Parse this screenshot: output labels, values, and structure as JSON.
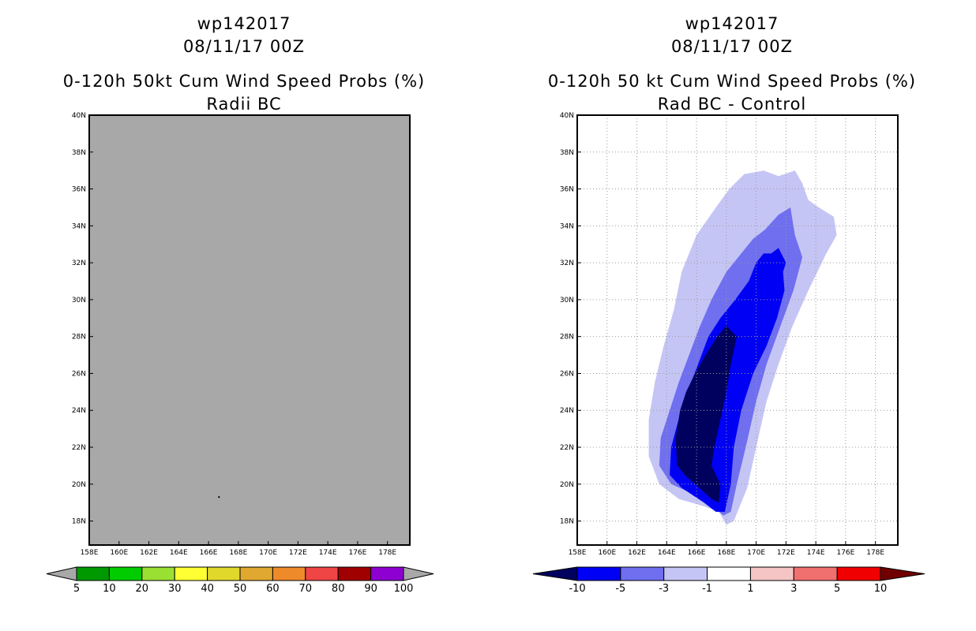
{
  "chart_data": [
    {
      "type": "heatmap",
      "storm_id": "wp142017",
      "init_time": "08/11/17 00Z",
      "title": "0-120h 50kt Cum Wind Speed Probs (%)",
      "subtitle": "Radii BC",
      "xlim": [
        158,
        179.5
      ],
      "ylim": [
        16.7,
        40
      ],
      "x_ticks": [
        "158E",
        "160E",
        "162E",
        "164E",
        "166E",
        "168E",
        "170E",
        "172E",
        "174E",
        "176E",
        "178E"
      ],
      "y_ticks": [
        "18N",
        "20N",
        "22N",
        "24N",
        "26N",
        "28N",
        "30N",
        "32N",
        "34N",
        "36N",
        "38N",
        "40N"
      ],
      "grid": false,
      "field_note": "uniform undefined field (all grey) with a single marker near 166.7E, 19.3N",
      "marker": {
        "lon": 166.7,
        "lat": 19.3
      },
      "colorbar": {
        "levels": [
          "5",
          "10",
          "20",
          "30",
          "40",
          "50",
          "60",
          "70",
          "80",
          "90",
          "100"
        ],
        "colors": [
          "#009900",
          "#00cc00",
          "#99e033",
          "#ffff33",
          "#e0d92b",
          "#e0a830",
          "#ef8a2b",
          "#f04545",
          "#a00000",
          "#8d00d0"
        ],
        "under_color": "#a8a8a8",
        "over_color": "#a8a8a8"
      },
      "background_color": "#a8a8a8"
    },
    {
      "type": "heatmap",
      "storm_id": "wp142017",
      "init_time": "08/11/17 00Z",
      "title": "0-120h 50 kt Cum Wind Speed Probs (%)",
      "subtitle": "Rad BC - Control",
      "xlim": [
        158,
        179.5
      ],
      "ylim": [
        16.7,
        40
      ],
      "x_ticks": [
        "158E",
        "160E",
        "162E",
        "164E",
        "166E",
        "168E",
        "170E",
        "172E",
        "174E",
        "176E",
        "178E"
      ],
      "y_ticks": [
        "18N",
        "20N",
        "22N",
        "24N",
        "26N",
        "28N",
        "30N",
        "32N",
        "34N",
        "36N",
        "38N",
        "40N"
      ],
      "grid": true,
      "colorbar": {
        "levels": [
          "-10",
          "-5",
          "-3",
          "-1",
          "1",
          "3",
          "5",
          "10"
        ],
        "colors": [
          "#0000f5",
          "#6f6ff0",
          "#c5c5f5",
          "#ffffff",
          "#f5c5c5",
          "#f06f6f",
          "#f00000"
        ],
        "under_color": "#00005f",
        "over_color": "#700000"
      },
      "contours": [
        {
          "level": "-1 to -3",
          "color": "#c5c5f5",
          "points": [
            [
              168.5,
              18.0
            ],
            [
              169.4,
              19.8
            ],
            [
              170.0,
              22.0
            ],
            [
              170.7,
              24.5
            ],
            [
              171.5,
              26.5
            ],
            [
              172.4,
              28.5
            ],
            [
              173.5,
              30.5
            ],
            [
              174.7,
              32.5
            ],
            [
              175.4,
              33.5
            ],
            [
              175.2,
              34.5
            ],
            [
              174.2,
              35.0
            ],
            [
              173.5,
              35.4
            ],
            [
              173.1,
              36.3
            ],
            [
              172.6,
              37.0
            ],
            [
              171.5,
              36.7
            ],
            [
              170.5,
              37.0
            ],
            [
              169.2,
              36.8
            ],
            [
              168.2,
              36.0
            ],
            [
              167.3,
              35.0
            ],
            [
              166.0,
              33.5
            ],
            [
              165.0,
              31.5
            ],
            [
              164.5,
              29.5
            ],
            [
              163.8,
              27.5
            ],
            [
              163.2,
              25.5
            ],
            [
              162.8,
              23.5
            ],
            [
              162.8,
              21.5
            ],
            [
              163.5,
              20.0
            ],
            [
              164.8,
              19.2
            ],
            [
              166.5,
              18.8
            ],
            [
              167.5,
              18.5
            ],
            [
              168.0,
              17.8
            ]
          ]
        },
        {
          "level": "-3 to -5",
          "color": "#6f6ff0",
          "points": [
            [
              168.3,
              18.5
            ],
            [
              168.7,
              20.0
            ],
            [
              169.3,
              22.0
            ],
            [
              170.0,
              24.5
            ],
            [
              170.7,
              26.5
            ],
            [
              171.6,
              28.5
            ],
            [
              172.5,
              30.5
            ],
            [
              173.1,
              32.3
            ],
            [
              172.6,
              33.5
            ],
            [
              172.3,
              35.0
            ],
            [
              171.5,
              34.6
            ],
            [
              170.6,
              33.8
            ],
            [
              169.8,
              33.3
            ],
            [
              169.0,
              32.5
            ],
            [
              168.0,
              31.5
            ],
            [
              167.0,
              30.0
            ],
            [
              166.2,
              28.5
            ],
            [
              165.5,
              27.0
            ],
            [
              164.8,
              25.5
            ],
            [
              164.2,
              24.0
            ],
            [
              163.6,
              22.5
            ],
            [
              163.5,
              21.0
            ],
            [
              164.3,
              20.0
            ],
            [
              165.7,
              19.5
            ],
            [
              166.8,
              19.0
            ],
            [
              167.8,
              18.3
            ]
          ]
        },
        {
          "level": "-5 to -10",
          "color": "#0000f5",
          "points": [
            [
              167.9,
              18.5
            ],
            [
              168.3,
              20.0
            ],
            [
              168.5,
              22.0
            ],
            [
              169.0,
              24.0
            ],
            [
              169.8,
              26.0
            ],
            [
              170.7,
              27.5
            ],
            [
              171.4,
              29.0
            ],
            [
              171.9,
              30.5
            ],
            [
              171.8,
              31.5
            ],
            [
              172.0,
              32.0
            ],
            [
              171.5,
              32.8
            ],
            [
              171.0,
              32.5
            ],
            [
              170.5,
              32.5
            ],
            [
              170.0,
              32.0
            ],
            [
              169.5,
              31.0
            ],
            [
              168.6,
              30.0
            ],
            [
              167.6,
              29.0
            ],
            [
              166.8,
              28.0
            ],
            [
              166.1,
              26.5
            ],
            [
              165.4,
              25.0
            ],
            [
              164.8,
              23.5
            ],
            [
              164.3,
              22.0
            ],
            [
              164.2,
              20.5
            ],
            [
              165.0,
              19.8
            ],
            [
              166.5,
              19.0
            ],
            [
              167.3,
              18.5
            ]
          ]
        },
        {
          "level": "< -10",
          "color": "#00005f",
          "points": [
            [
              167.5,
              19.0
            ],
            [
              167.6,
              20.0
            ],
            [
              167.0,
              21.0
            ],
            [
              167.2,
              22.0
            ],
            [
              167.6,
              23.5
            ],
            [
              168.0,
              25.0
            ],
            [
              168.3,
              26.5
            ],
            [
              168.7,
              28.0
            ],
            [
              168.0,
              28.6
            ],
            [
              167.4,
              28.0
            ],
            [
              166.6,
              27.0
            ],
            [
              165.9,
              26.0
            ],
            [
              165.3,
              25.0
            ],
            [
              164.9,
              24.0
            ],
            [
              164.6,
              22.5
            ],
            [
              164.7,
              21.0
            ],
            [
              165.2,
              20.5
            ],
            [
              166.2,
              19.8
            ],
            [
              167.0,
              19.2
            ]
          ]
        }
      ],
      "background_color": "#ffffff"
    }
  ]
}
